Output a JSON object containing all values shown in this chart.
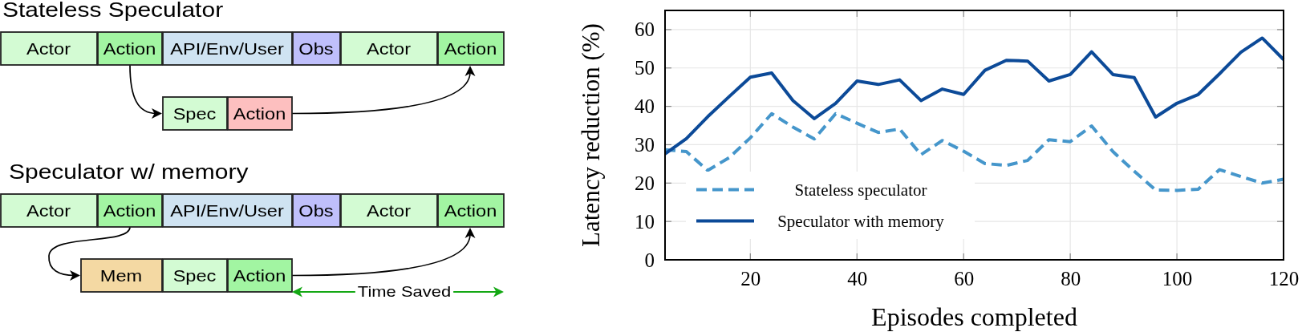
{
  "chart_data": [
    {
      "type": "other",
      "title": "Stateless Speculator",
      "annotations": [
        "Actor",
        "Action",
        "API/Env/User",
        "Obs",
        "Actor",
        "Action",
        "Spec",
        "Action"
      ]
    },
    {
      "type": "other",
      "title": "Speculator w/ memory",
      "annotations": [
        "Actor",
        "Action",
        "API/Env/User",
        "Obs",
        "Actor",
        "Action",
        "Mem",
        "Spec",
        "Action",
        "Time Saved"
      ]
    },
    {
      "type": "line",
      "xlabel": "Episodes completed",
      "ylabel": "Latency reduction (%)",
      "x": [
        4,
        8,
        12,
        16,
        20,
        24,
        28,
        32,
        36,
        40,
        44,
        48,
        52,
        56,
        60,
        64,
        68,
        72,
        76,
        80,
        84,
        88,
        92,
        96,
        100,
        104,
        108,
        112,
        116,
        120
      ],
      "series": [
        {
          "name": "Stateless speculator",
          "color": "#4596cb",
          "line_style": "dashed",
          "values": [
            28.7,
            28.2,
            23.3,
            26.6,
            31.8,
            38.1,
            34.6,
            31.5,
            38.1,
            35.6,
            33.2,
            34.1,
            27.4,
            31.1,
            28.3,
            25.1,
            24.6,
            25.9,
            31.3,
            30.8,
            34.9,
            28.2,
            23.1,
            18.2,
            18.1,
            18.4,
            23.5,
            21.7,
            20.0,
            21.0
          ]
        },
        {
          "name": "Speculator with memory",
          "color": "#0c4a98",
          "line_style": "solid",
          "values": [
            27.6,
            31.6,
            37.3,
            42.5,
            47.6,
            48.7,
            41.5,
            36.8,
            40.8,
            46.6,
            45.7,
            46.9,
            41.5,
            44.5,
            43.1,
            49.4,
            52.0,
            51.8,
            46.6,
            48.3,
            54.2,
            48.3,
            47.5,
            37.2,
            40.8,
            43.1,
            48.5,
            54.1,
            57.8,
            52.2
          ]
        }
      ],
      "xlim": [
        4,
        120
      ],
      "xticks": [
        20,
        40,
        60,
        80,
        100,
        120
      ],
      "ylim": [
        0,
        65
      ],
      "yticks": [
        0,
        10,
        20,
        30,
        40,
        50,
        60
      ],
      "grid": true,
      "legend": "bottom left"
    }
  ]
}
